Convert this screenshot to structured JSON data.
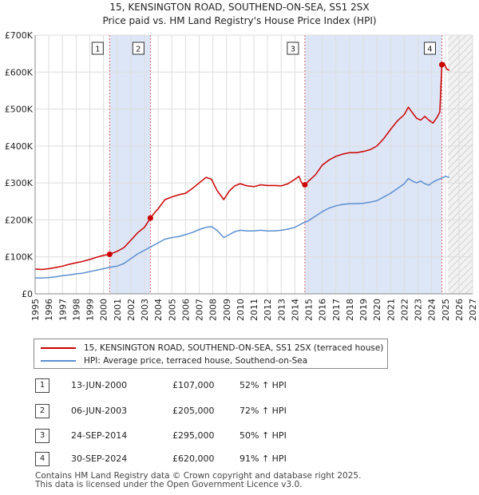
{
  "title_line1": "15, KENSINGTON ROAD, SOUTHEND-ON-SEA, SS1 2SX",
  "title_line2": "Price paid vs. HM Land Registry's House Price Index (HPI)",
  "colors": {
    "property_line": "#cc0000",
    "hpi_line": "#5b8fd0",
    "shade": "#dde6f7",
    "marker_vline": "#e06060",
    "grid": "#dddddd"
  },
  "chart_data": {
    "type": "line",
    "title": "15, KENSINGTON ROAD, SOUTHEND-ON-SEA, SS1 2SX",
    "subtitle": "Price paid vs. HM Land Registry's House Price Index (HPI)",
    "xlabel": "",
    "ylabel": "",
    "xlim": [
      1995,
      2027
    ],
    "ylim": [
      0,
      700000
    ],
    "x_ticks": [
      1995,
      1996,
      1997,
      1998,
      1999,
      2000,
      2001,
      2002,
      2003,
      2004,
      2005,
      2006,
      2007,
      2008,
      2009,
      2010,
      2011,
      2012,
      2013,
      2014,
      2015,
      2016,
      2017,
      2018,
      2019,
      2020,
      2021,
      2022,
      2023,
      2024,
      2025,
      2026,
      2027
    ],
    "y_ticks": [
      0,
      100000,
      200000,
      300000,
      400000,
      500000,
      600000,
      700000
    ],
    "y_tick_labels": [
      "£0",
      "£100K",
      "£200K",
      "£300K",
      "£400K",
      "£500K",
      "£600K",
      "£700K"
    ],
    "grid": true,
    "shaded_ranges": [
      [
        2000.45,
        2003.43
      ],
      [
        2014.73,
        2024.75
      ]
    ],
    "hatched_range": [
      2025.2,
      2027
    ],
    "series": [
      {
        "name": "15, KENSINGTON ROAD, SOUTHEND-ON-SEA, SS1 2SX (terraced house)",
        "color": "#cc0000",
        "x": [
          1995,
          1995.5,
          1996,
          1996.5,
          1997,
          1997.5,
          1998,
          1998.5,
          1999,
          1999.5,
          2000,
          2000.45,
          2000.8,
          2001,
          2001.5,
          2002,
          2002.5,
          2003,
          2003.43,
          2003.8,
          2004,
          2004.5,
          2005,
          2005.5,
          2006,
          2006.5,
          2007,
          2007.5,
          2007.9,
          2008.3,
          2008.8,
          2009.2,
          2009.6,
          2010,
          2010.5,
          2011,
          2011.5,
          2012,
          2012.5,
          2013,
          2013.5,
          2014,
          2014.3,
          2014.5,
          2014.73,
          2015,
          2015.5,
          2016,
          2016.5,
          2017,
          2017.5,
          2018,
          2018.5,
          2019,
          2019.5,
          2020,
          2020.5,
          2021,
          2021.5,
          2022,
          2022.3,
          2022.6,
          2022.9,
          2023.2,
          2023.5,
          2023.8,
          2024.1,
          2024.4,
          2024.6,
          2024.75,
          2024.9,
          2025.1,
          2025.3
        ],
        "y": [
          67000,
          66000,
          68000,
          71000,
          75000,
          80000,
          84000,
          88000,
          93000,
          99000,
          104000,
          107000,
          112000,
          115000,
          125000,
          145000,
          165000,
          180000,
          205000,
          222000,
          230000,
          255000,
          262000,
          268000,
          272000,
          285000,
          300000,
          315000,
          310000,
          280000,
          255000,
          278000,
          292000,
          298000,
          292000,
          290000,
          295000,
          293000,
          293000,
          292000,
          298000,
          310000,
          318000,
          300000,
          295000,
          305000,
          322000,
          348000,
          362000,
          372000,
          378000,
          382000,
          382000,
          385000,
          390000,
          400000,
          420000,
          445000,
          468000,
          485000,
          505000,
          490000,
          475000,
          470000,
          480000,
          470000,
          462000,
          478000,
          492000,
          620000,
          625000,
          608000,
          605000
        ]
      },
      {
        "name": "HPI: Average price, terraced house, Southend-on-Sea",
        "color": "#5b8fd0",
        "x": [
          1995,
          1995.5,
          1996,
          1996.5,
          1997,
          1997.5,
          1998,
          1998.5,
          1999,
          1999.5,
          2000,
          2000.5,
          2001,
          2001.5,
          2002,
          2002.5,
          2003,
          2003.5,
          2004,
          2004.5,
          2005,
          2005.5,
          2006,
          2006.5,
          2007,
          2007.5,
          2007.9,
          2008.3,
          2008.8,
          2009.2,
          2009.6,
          2010,
          2010.5,
          2011,
          2011.5,
          2012,
          2012.5,
          2013,
          2013.5,
          2014,
          2014.5,
          2015,
          2015.5,
          2016,
          2016.5,
          2017,
          2017.5,
          2018,
          2018.5,
          2019,
          2019.5,
          2020,
          2020.5,
          2021,
          2021.5,
          2022,
          2022.3,
          2022.6,
          2022.9,
          2023.2,
          2023.5,
          2023.8,
          2024.1,
          2024.4,
          2024.75,
          2025,
          2025.3
        ],
        "y": [
          43000,
          43000,
          44000,
          46000,
          49000,
          51000,
          54000,
          56000,
          60000,
          64000,
          68000,
          72000,
          75000,
          82000,
          95000,
          108000,
          118000,
          128000,
          138000,
          148000,
          152000,
          155000,
          160000,
          166000,
          174000,
          180000,
          182000,
          172000,
          152000,
          160000,
          168000,
          172000,
          170000,
          170000,
          172000,
          170000,
          170000,
          172000,
          175000,
          180000,
          190000,
          198000,
          210000,
          222000,
          232000,
          238000,
          242000,
          244000,
          244000,
          245000,
          248000,
          252000,
          262000,
          272000,
          285000,
          298000,
          312000,
          305000,
          300000,
          305000,
          298000,
          294000,
          302000,
          308000,
          313000,
          318000,
          315000
        ]
      }
    ],
    "transactions": [
      {
        "num": "1",
        "x": 2000.45,
        "y": 107000,
        "date": "13-JUN-2000",
        "price": "£107,000",
        "hpi": "52% ↑ HPI"
      },
      {
        "num": "2",
        "x": 2003.43,
        "y": 205000,
        "date": "06-JUN-2003",
        "price": "£205,000",
        "hpi": "72% ↑ HPI"
      },
      {
        "num": "3",
        "x": 2014.73,
        "y": 295000,
        "date": "24-SEP-2014",
        "price": "£295,000",
        "hpi": "50% ↑ HPI"
      },
      {
        "num": "4",
        "x": 2024.75,
        "y": 620000,
        "date": "30-SEP-2024",
        "price": "£620,000",
        "hpi": "91% ↑ HPI"
      }
    ]
  },
  "legend": {
    "property_label": "15, KENSINGTON ROAD, SOUTHEND-ON-SEA, SS1 2SX (terraced house)",
    "hpi_label": "HPI: Average price, terraced house, Southend-on-Sea"
  },
  "footer": {
    "line1": "Contains HM Land Registry data © Crown copyright and database right 2025.",
    "line2": "This data is licensed under the Open Government Licence v3.0."
  }
}
